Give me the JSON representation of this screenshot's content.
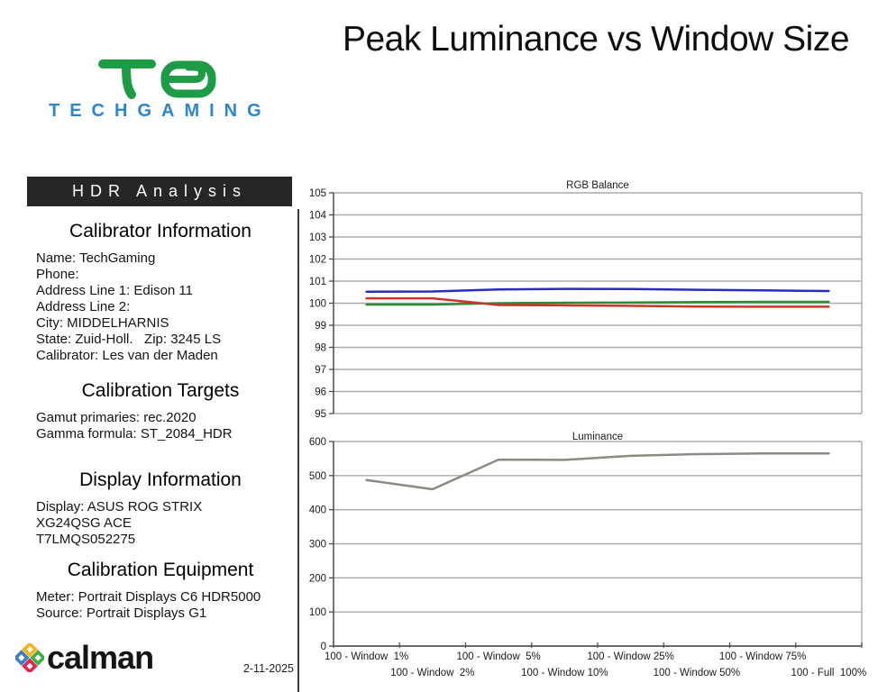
{
  "page": {
    "title": "Peak Luminance vs Window Size",
    "date": "2-11-2025"
  },
  "brand": {
    "wordmark": "TECHGAMING",
    "glyph_icon": "tg-monogram-icon",
    "glyph_color": "#1E9B45",
    "wordmark_color": "#2E86C9"
  },
  "panel": {
    "header": "HDR Analysis",
    "sections": [
      {
        "heading": "Calibrator Information",
        "lines": [
          "Name: TechGaming",
          "Phone:",
          "Address Line 1: Edison 11",
          "Address Line 2:",
          "City: MIDDELHARNIS",
          "State: Zuid-Holl.   Zip: 3245 LS",
          "Calibrator: Les van der Maden"
        ]
      },
      {
        "heading": "Calibration Targets",
        "lines": [
          "Gamut primaries: rec.2020",
          "Gamma formula: ST_2084_HDR"
        ]
      },
      {
        "heading": "Display Information",
        "lines": [
          "Display: ASUS ROG STRIX",
          "XG24QSG ACE",
          "T7LMQS052275"
        ]
      },
      {
        "heading": "Calibration Equipment",
        "lines": [
          "Meter: Portrait Displays C6 HDR5000",
          "Source: Portrait Displays G1"
        ]
      }
    ]
  },
  "footer": {
    "logo_text": "calman",
    "logo_icon": "calman-diamond-icon",
    "icon_colors": {
      "top": "#F0B41E",
      "left": "#3F7FC1",
      "right": "#3FAE49",
      "bottom": "#E4264E"
    }
  },
  "chart_data": [
    {
      "type": "line",
      "title": "RGB Balance",
      "categories": [
        "100 - Window  1%",
        "100 - Window  2%",
        "100 - Window  5%",
        "100 - Window 10%",
        "100 - Window 25%",
        "100 - Window 50%",
        "100 - Window 75%",
        "100 - Full  100%"
      ],
      "show_x_labels": false,
      "ylim": [
        95,
        105
      ],
      "ystep": 1,
      "grid": true,
      "legend": "none",
      "series": [
        {
          "name": "Green",
          "color": "#2F8A35",
          "values": [
            99.94,
            99.94,
            100.0,
            100.02,
            100.03,
            100.05,
            100.06,
            100.06
          ]
        },
        {
          "name": "Red",
          "color": "#C8352A",
          "values": [
            100.22,
            100.22,
            99.92,
            99.9,
            99.88,
            99.85,
            99.84,
            99.84
          ]
        },
        {
          "name": "Blue",
          "color": "#2B2BBE",
          "values": [
            100.52,
            100.53,
            100.62,
            100.65,
            100.64,
            100.61,
            100.58,
            100.55
          ]
        }
      ]
    },
    {
      "type": "line",
      "title": "Luminance",
      "categories": [
        "100 - Window  1%",
        "100 - Window  2%",
        "100 - Window  5%",
        "100 - Window 10%",
        "100 - Window 25%",
        "100 - Window 50%",
        "100 - Window 75%",
        "100 - Full  100%"
      ],
      "show_x_labels": true,
      "ylim": [
        0,
        600
      ],
      "ystep": 100,
      "grid": true,
      "legend": "none",
      "series": [
        {
          "name": "Luminance",
          "color": "#8B8B83",
          "values": [
            487,
            460,
            547,
            546,
            558,
            563,
            565,
            565
          ]
        }
      ]
    }
  ]
}
